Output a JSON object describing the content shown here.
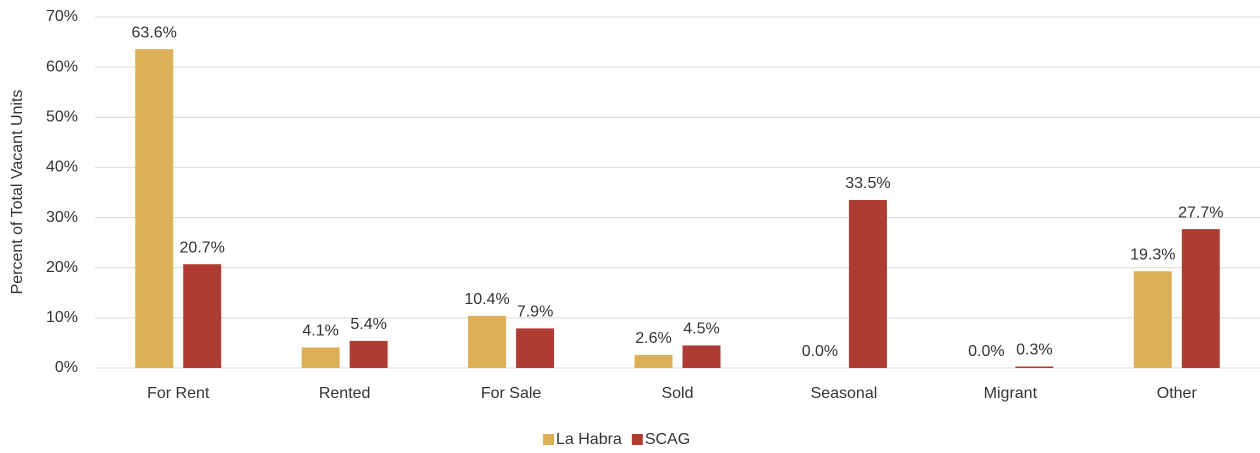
{
  "chart_data": {
    "type": "bar",
    "y_label": "Percent of Total Vacant Units",
    "categories": [
      "For Rent",
      "Rented",
      "For Sale",
      "Sold",
      "Seasonal",
      "Migrant",
      "Other"
    ],
    "series": [
      {
        "name": "La Habra",
        "color": "#ddb057",
        "values": [
          63.6,
          4.1,
          10.4,
          2.6,
          0.0,
          0.0,
          19.3
        ],
        "value_labels": [
          "63.6%",
          "4.1%",
          "10.4%",
          "2.6%",
          "0.0%",
          "0.0%",
          "19.3%"
        ]
      },
      {
        "name": "SCAG",
        "color": "#ae3c33",
        "values": [
          20.7,
          5.4,
          7.9,
          4.5,
          33.5,
          0.3,
          27.7
        ],
        "value_labels": [
          "20.7%",
          "5.4%",
          "7.9%",
          "4.5%",
          "33.5%",
          "0.3%",
          "27.7%"
        ]
      }
    ],
    "ylim": [
      0,
      70
    ],
    "yticks": [
      {
        "value": 0,
        "label": "0%"
      },
      {
        "value": 10,
        "label": "10%"
      },
      {
        "value": 20,
        "label": "20%"
      },
      {
        "value": 30,
        "label": "30%"
      },
      {
        "value": 40,
        "label": "40%"
      },
      {
        "value": 50,
        "label": "50%"
      },
      {
        "value": 60,
        "label": "60%"
      },
      {
        "value": 70,
        "label": "70%"
      }
    ],
    "grid": true,
    "legend": "bottom"
  }
}
